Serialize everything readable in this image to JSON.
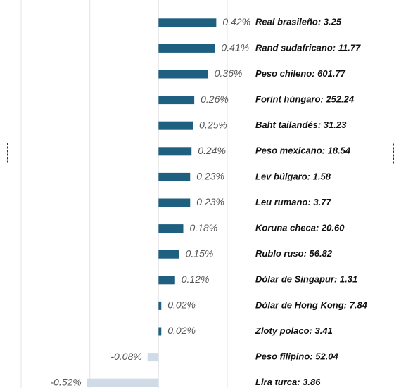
{
  "chart_data": {
    "type": "bar",
    "orientation": "horizontal",
    "categories": [
      "Real brasileño: 3.25",
      "Rand sudafricano: 11.77",
      "Peso chileno: 601.77",
      "Forint húngaro: 252.24",
      "Baht tailandés: 31.23",
      "Peso mexicano: 18.54",
      "Lev búlgaro: 1.58",
      "Leu rumano: 3.77",
      "Koruna checa: 20.60",
      "Rublo ruso: 56.82",
      "Dólar de Singapur: 1.31",
      "Dólar de Hong Kong: 7.84",
      "Zloty polaco: 3.41",
      "Peso filipino: 52.04",
      "Lira turca: 3.86"
    ],
    "values": [
      0.42,
      0.41,
      0.36,
      0.26,
      0.25,
      0.24,
      0.23,
      0.23,
      0.18,
      0.15,
      0.12,
      0.02,
      0.02,
      -0.08,
      -0.52
    ],
    "value_labels": [
      "0.42%",
      "0.41%",
      "0.36%",
      "0.26%",
      "0.25%",
      "0.24%",
      "0.23%",
      "0.23%",
      "0.18%",
      "0.15%",
      "0.12%",
      "0.02%",
      "0.02%",
      "-0.08%",
      "-0.52%"
    ],
    "positive_color": "#1f5f7f",
    "negative_color": "#cfdbe6",
    "xlim": [
      -1,
      0.5
    ],
    "xticks": [
      -1,
      -0.5,
      0,
      0.5
    ],
    "grid": true
  }
}
